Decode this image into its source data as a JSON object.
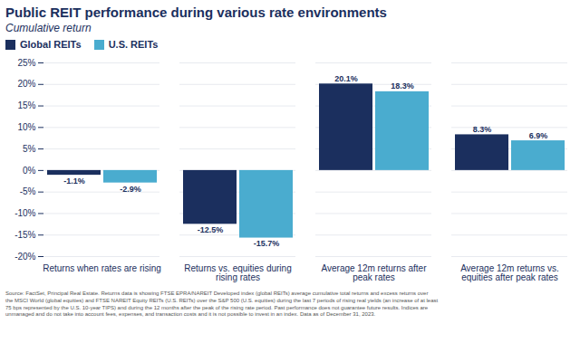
{
  "chart_data": {
    "type": "bar",
    "title": "Public REIT performance during various rate environments",
    "subtitle": "Cumulative return",
    "footnote": "Source: FactSet, Principal Real Estate. Returns data is showing FTSE EPRA/NAREIT Developed index (global REITs) average cumulative total returns and excess returns over\nthe MSCI World (global equities) and FTSE NAREIT Equity REITs (U.S. REITs) over the S&P 500 (U.S. equities) during the last 7 periods of rising real yields (an increase of at least\n75 bps represented by the U.S. 10-year TIPS) and during the 12 months after the peak of the rising rate period. Past performance does not guarantee future results. Indices are\nunmanaged and do not take into account fees, expenses, and transaction costs and it is not possible to invest in an index. Data as of December 31, 2023.",
    "categories": [
      "Returns when rates are rising",
      "Returns vs. equities during\nrising rates",
      "Average 12m returns after\npeak rates",
      "Average 12m returns vs.\nequities after peak rates"
    ],
    "series": [
      {
        "name": "Global REITs",
        "color": "#1b2f5e",
        "values": [
          -1.1,
          -12.5,
          20.1,
          8.3
        ],
        "value_labels": [
          "-1.1%",
          "-12.5%",
          "20.1%",
          "8.3%"
        ]
      },
      {
        "name": "U.S. REITs",
        "color": "#4aaccf",
        "values": [
          -2.9,
          -15.7,
          18.3,
          6.9
        ],
        "value_labels": [
          "-2.9%",
          "-15.7%",
          "18.3%",
          "6.9%"
        ]
      }
    ],
    "ylim": [
      -20,
      25
    ],
    "yticks": [
      {
        "value": -20,
        "label": "-20%"
      },
      {
        "value": -15,
        "label": "-15%"
      },
      {
        "value": -10,
        "label": "-10%"
      },
      {
        "value": -5,
        "label": "-5%"
      },
      {
        "value": 0,
        "label": "0%"
      },
      {
        "value": 5,
        "label": "5%"
      },
      {
        "value": 10,
        "label": "10%"
      },
      {
        "value": 15,
        "label": "15%"
      },
      {
        "value": 20,
        "label": "20%"
      },
      {
        "value": 25,
        "label": "25%"
      }
    ],
    "grid": true,
    "legend": "upper left",
    "data_labels": true
  }
}
